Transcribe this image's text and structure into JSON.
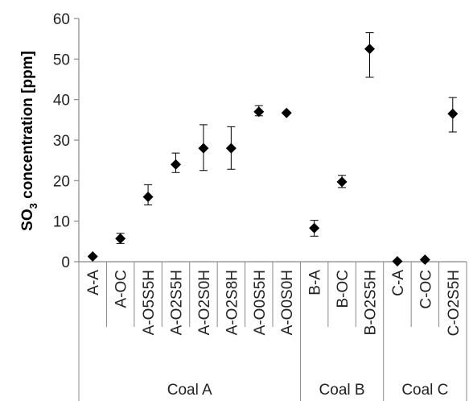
{
  "chart_data": {
    "type": "scatter",
    "ylabel_main": "SO",
    "ylabel_sub": "3",
    "ylabel_rest": " concentration [ppm]",
    "ylim": [
      0,
      60
    ],
    "yticks": [
      0,
      10,
      20,
      30,
      40,
      50,
      60
    ],
    "grid": false,
    "marker": "diamond",
    "categories": [
      "A-A",
      "A-OC",
      "A-O5S5H",
      "A-O2S5H",
      "A-O2S0H",
      "A-O2S8H",
      "A-O0S5H",
      "A-O0S0H",
      "B-A",
      "B-OC",
      "B-O2S5H",
      "C-A",
      "C-OC",
      "C-O2S5H"
    ],
    "values": [
      1.3,
      5.7,
      16.0,
      24.0,
      28.0,
      28.0,
      37.0,
      36.7,
      8.3,
      19.7,
      52.5,
      0.1,
      0.5,
      36.5
    ],
    "error_low": [
      1.3,
      4.5,
      14.0,
      22.0,
      22.5,
      22.8,
      36.0,
      36.7,
      6.3,
      18.3,
      45.5,
      0.1,
      0.5,
      32.0
    ],
    "error_high": [
      1.3,
      7.0,
      19.0,
      26.8,
      33.8,
      33.3,
      38.5,
      36.7,
      10.2,
      21.3,
      56.5,
      0.1,
      0.5,
      40.5
    ],
    "groups": [
      {
        "label": "Coal A",
        "start": 0,
        "count": 8
      },
      {
        "label": "Coal B",
        "start": 8,
        "count": 3
      },
      {
        "label": "Coal C",
        "start": 11,
        "count": 3
      }
    ]
  }
}
